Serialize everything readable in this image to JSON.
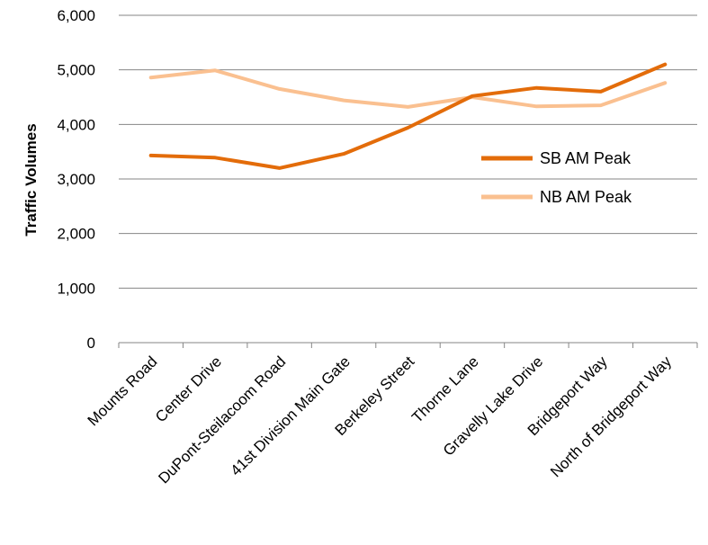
{
  "chart_data": {
    "type": "line",
    "title": "",
    "xlabel": "",
    "ylabel": "Traffic Volumes",
    "ylim": [
      0,
      6000
    ],
    "yticks": [
      0,
      1000,
      2000,
      3000,
      4000,
      5000,
      6000
    ],
    "ytick_labels": [
      "0",
      "1,000",
      "2,000",
      "3,000",
      "4,000",
      "5,000",
      "6,000"
    ],
    "grid": "horizontal",
    "legend_position": "right",
    "categories": [
      "Mounts Road",
      "Center Drive",
      "DuPont-Steilacoom Road",
      "41st Division Main Gate",
      "Berkeley Street",
      "Thorne Lane",
      "Gravelly Lake Drive",
      "Bridgeport Way",
      "North of Bridgeport Way"
    ],
    "series": [
      {
        "name": "SB AM Peak",
        "color": "#E36C0A",
        "values": [
          3430,
          3390,
          3200,
          3460,
          3940,
          4520,
          4670,
          4600,
          5100
        ]
      },
      {
        "name": "NB AM Peak",
        "color": "#FAC090",
        "values": [
          4860,
          4990,
          4650,
          4440,
          4320,
          4500,
          4330,
          4350,
          4760
        ]
      }
    ]
  }
}
